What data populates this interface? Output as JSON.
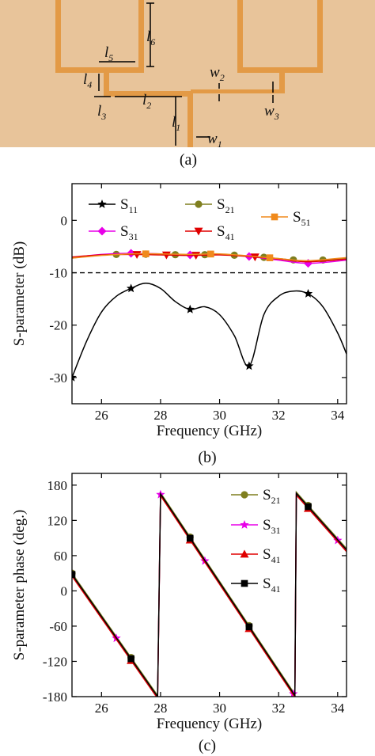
{
  "captions": {
    "a": "(a)",
    "b": "(b)",
    "c": "(c)"
  },
  "layout_labels": [
    {
      "id": "l5",
      "base": "l",
      "sub": "5"
    },
    {
      "id": "l6",
      "base": "l",
      "sub": "6"
    },
    {
      "id": "l4",
      "base": "l",
      "sub": "4"
    },
    {
      "id": "l3",
      "base": "l",
      "sub": "3"
    },
    {
      "id": "l2",
      "base": "l",
      "sub": "2"
    },
    {
      "id": "l1",
      "base": "l",
      "sub": "1"
    },
    {
      "id": "w1",
      "base": "w",
      "sub": "1"
    },
    {
      "id": "w2",
      "base": "w",
      "sub": "2"
    },
    {
      "id": "w3",
      "base": "w",
      "sub": "3"
    }
  ],
  "colors": {
    "substrate": "#E8C49A",
    "copper": "#E39A46",
    "s11": "#000000",
    "s21": "#7F7F1F",
    "s31": "#E800E8",
    "s41": "#E00000",
    "s51": "#F08A1C",
    "s41b": "#000000"
  },
  "chart_data": [
    {
      "type": "line",
      "panel": "(b)",
      "xlabel": "Frequency (GHz)",
      "ylabel": "S-parameter (dB)",
      "xlim": [
        25,
        34.3
      ],
      "ylim": [
        -35,
        7
      ],
      "xticks": [
        26,
        28,
        30,
        32,
        34
      ],
      "yticks": [
        0,
        -10,
        -20,
        -30
      ],
      "xtick_labels": [
        "26",
        "28",
        "30",
        "32",
        "34"
      ],
      "ytick_labels": [
        "0",
        "-10",
        "-20",
        "-30"
      ],
      "reference_line": -10,
      "grid": false,
      "series": [
        {
          "name": "S11",
          "base": "S",
          "sub": "11",
          "color": "#000000",
          "marker": "star",
          "x": [
            25,
            25.5,
            26,
            26.5,
            27,
            27.5,
            28,
            28.5,
            29,
            29.5,
            30,
            30.5,
            31,
            31.5,
            32,
            32.5,
            33,
            33.5,
            34,
            34.3
          ],
          "y": [
            -30,
            -23,
            -17.5,
            -14.5,
            -13,
            -12,
            -13,
            -15.5,
            -17,
            -16.5,
            -18,
            -22,
            -27.8,
            -18,
            -14.5,
            -13.5,
            -14,
            -16.5,
            -21.5,
            -25.5
          ],
          "marker_x": [
            25,
            27,
            29,
            31,
            33
          ]
        },
        {
          "name": "S21",
          "base": "S",
          "sub": "21",
          "color": "#7F7F1F",
          "marker": "circle",
          "x": [
            25,
            26,
            27,
            28,
            29,
            30,
            31,
            32,
            33,
            34.3
          ],
          "y": [
            -7.2,
            -6.6,
            -6.4,
            -6.5,
            -6.6,
            -6.5,
            -6.8,
            -7.3,
            -7.8,
            -7.2
          ],
          "marker_x": [
            26.5,
            27.5,
            28.5,
            29.5,
            30.5,
            31.5,
            32.5,
            33.5
          ]
        },
        {
          "name": "S31",
          "base": "S",
          "sub": "31",
          "color": "#E800E8",
          "marker": "diamond",
          "x": [
            25,
            26,
            27,
            28,
            29,
            30,
            31,
            32,
            33,
            34.3
          ],
          "y": [
            -7.1,
            -6.5,
            -6.3,
            -6.4,
            -6.6,
            -6.5,
            -6.9,
            -7.6,
            -8.2,
            -7.6
          ],
          "marker_x": [
            27,
            29,
            31,
            33
          ]
        },
        {
          "name": "S41",
          "base": "S",
          "sub": "41",
          "color": "#E00000",
          "marker": "triangle-down",
          "x": [
            25,
            26,
            27,
            28,
            29,
            30,
            31,
            32,
            33,
            34.3
          ],
          "y": [
            -7.0,
            -6.6,
            -6.5,
            -6.6,
            -6.7,
            -6.6,
            -6.9,
            -7.4,
            -7.9,
            -7.4
          ],
          "marker_x": [
            27.2,
            28.2,
            29.2,
            31.2
          ]
        },
        {
          "name": "S51",
          "base": "S",
          "sub": "51",
          "color": "#F08A1C",
          "marker": "square",
          "x": [
            25,
            26,
            27,
            28,
            29,
            30,
            31,
            32,
            33,
            34.3
          ],
          "y": [
            -7.2,
            -6.7,
            -6.4,
            -6.4,
            -6.5,
            -6.4,
            -6.8,
            -7.3,
            -7.7,
            -7.1
          ],
          "marker_x": [
            27.5,
            29.7,
            31.7
          ]
        }
      ],
      "legend": "top"
    },
    {
      "type": "line",
      "panel": "(c)",
      "xlabel": "Frequency (GHz)",
      "ylabel": "S-parameter phase (deg.)",
      "xlim": [
        25,
        34.3
      ],
      "ylim": [
        -180,
        200
      ],
      "xticks": [
        26,
        28,
        30,
        32,
        34
      ],
      "yticks": [
        180,
        120,
        60,
        0,
        -60,
        -120,
        -180
      ],
      "xtick_labels": [
        "26",
        "28",
        "30",
        "32",
        "34"
      ],
      "ytick_labels": [
        "180",
        "120",
        "60",
        "0",
        "-60",
        "-120",
        "-180"
      ],
      "grid": false,
      "series": [
        {
          "name": "S21",
          "base": "S",
          "sub": "21",
          "color": "#7F7F1F",
          "marker": "circle",
          "offset": 2,
          "x": [
            25,
            27.9,
            28.0,
            32.55,
            32.6,
            34.3
          ],
          "y": [
            28,
            -180,
            165,
            -178,
            166,
            70
          ],
          "marker_x": [
            25,
            27,
            29,
            31,
            33
          ]
        },
        {
          "name": "S31",
          "base": "S",
          "sub": "31",
          "color": "#E800E8",
          "marker": "star",
          "offset": -1,
          "x": [
            25,
            27.9,
            28.0,
            32.55,
            32.6,
            34.3
          ],
          "y": [
            28,
            -180,
            165,
            -178,
            166,
            70
          ],
          "marker_x": [
            26.5,
            28,
            29.5,
            32.5,
            34
          ]
        },
        {
          "name": "S41",
          "base": "S",
          "sub": "41",
          "color": "#E00000",
          "marker": "triangle",
          "offset": -3,
          "x": [
            25,
            27.9,
            28.0,
            32.55,
            32.6,
            34.3
          ],
          "y": [
            28,
            -180,
            165,
            -178,
            166,
            70
          ],
          "marker_x": [
            27,
            29,
            31,
            33
          ]
        },
        {
          "name": "S41",
          "base": "S",
          "sub": "41",
          "color": "#000000",
          "marker": "square",
          "offset": 0,
          "x": [
            25,
            27.9,
            28.0,
            32.55,
            32.6,
            34.3
          ],
          "y": [
            28,
            -180,
            165,
            -178,
            166,
            70
          ],
          "marker_x": [
            25,
            27,
            29,
            31,
            33
          ]
        }
      ],
      "legend": "top-right"
    }
  ]
}
